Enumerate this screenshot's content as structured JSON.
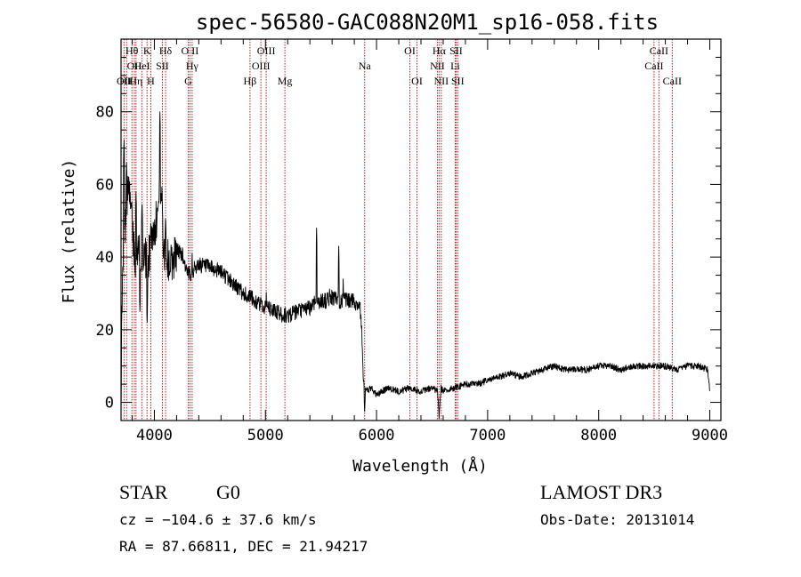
{
  "chart_data": {
    "type": "line",
    "title": "spec-56580-GAC088N20M1_sp16-058.fits",
    "xlabel": "Wavelength (Å)",
    "ylabel": "Flux (relative)",
    "xlim": [
      3700,
      9100
    ],
    "ylim": [
      -5,
      100
    ],
    "xticks": [
      4000,
      5000,
      6000,
      7000,
      8000,
      9000
    ],
    "yticks": [
      0,
      20,
      40,
      60,
      80
    ],
    "xtick_labels": [
      "4000",
      "5000",
      "6000",
      "7000",
      "8000",
      "9000"
    ],
    "ytick_labels": [
      "0",
      "20",
      "40",
      "60",
      "80"
    ],
    "spectrum_anchor_points": {
      "x": [
        3700,
        3710,
        3730,
        3750,
        3780,
        3800,
        3830,
        3850,
        3880,
        3900,
        3930,
        3950,
        3970,
        4000,
        4030,
        4050,
        4080,
        4100,
        4150,
        4200,
        4250,
        4300,
        4340,
        4370,
        4400,
        4500,
        4600,
        4700,
        4800,
        4861,
        4900,
        5000,
        5100,
        5150,
        5200,
        5300,
        5400,
        5450,
        5480,
        5500,
        5550,
        5600,
        5650,
        5700,
        5750,
        5800,
        5820,
        5850,
        5870,
        5880,
        5890,
        5895,
        5900,
        5920,
        5950,
        6000,
        6100,
        6200,
        6300,
        6400,
        6500,
        6550,
        6563,
        6580,
        6600,
        6700,
        6800,
        6900,
        7000,
        7100,
        7200,
        7300,
        7400,
        7500,
        7600,
        7700,
        7800,
        7900,
        8000,
        8100,
        8200,
        8300,
        8400,
        8500,
        8600,
        8700,
        8800,
        8900,
        8980,
        9000
      ],
      "y": [
        2,
        30,
        45,
        58,
        55,
        48,
        40,
        44,
        35,
        42,
        38,
        40,
        45,
        48,
        52,
        58,
        44,
        40,
        38,
        42,
        41,
        35,
        36,
        37,
        38,
        37,
        36,
        33,
        30,
        29,
        28,
        26,
        25,
        24,
        24,
        25,
        26,
        28,
        27,
        28,
        28,
        29,
        28,
        28,
        28,
        28,
        27,
        27,
        18,
        8,
        2,
        0,
        4,
        3,
        4,
        2,
        4,
        3,
        4,
        3,
        4,
        3,
        -4,
        4,
        3,
        4,
        5,
        5,
        6,
        7,
        8,
        7,
        8,
        9,
        10,
        9,
        9,
        9,
        10,
        10,
        9,
        10,
        10,
        10,
        10,
        9,
        10,
        10,
        9,
        3
      ]
    },
    "emission_spikes": [
      {
        "x": 3727,
        "y": 73
      },
      {
        "x": 3750,
        "y": 66
      },
      {
        "x": 3770,
        "y": 62
      },
      {
        "x": 3797,
        "y": 56
      },
      {
        "x": 3835,
        "y": 58
      },
      {
        "x": 3869,
        "y": 52
      },
      {
        "x": 3889,
        "y": 56
      },
      {
        "x": 3968,
        "y": 50
      },
      {
        "x": 4026,
        "y": 55
      },
      {
        "x": 4050,
        "y": 80
      },
      {
        "x": 4068,
        "y": 60
      },
      {
        "x": 4101,
        "y": 52
      },
      {
        "x": 4340,
        "y": 41
      },
      {
        "x": 4363,
        "y": 39
      },
      {
        "x": 4959,
        "y": 30
      },
      {
        "x": 5007,
        "y": 31
      },
      {
        "x": 5460,
        "y": 48
      },
      {
        "x": 5577,
        "y": 32
      },
      {
        "x": 5660,
        "y": 43
      },
      {
        "x": 5700,
        "y": 34
      }
    ],
    "absorption_dips": [
      {
        "x": 3870,
        "y": 25
      },
      {
        "x": 3935,
        "y": 22
      },
      {
        "x": 5875,
        "y": 12
      },
      {
        "x": 5893,
        "y": -3
      },
      {
        "x": 6563,
        "y": -5
      }
    ],
    "line_markers": [
      {
        "x": 3727,
        "row": 2,
        "label": "OII"
      },
      {
        "x": 3750,
        "row": 2,
        "label": "HE"
      },
      {
        "x": 3798,
        "row": 0,
        "label": "Hθ"
      },
      {
        "x": 3820,
        "row": 1,
        "label": "OII"
      },
      {
        "x": 3835,
        "row": 2,
        "label": "Hη"
      },
      {
        "x": 3889,
        "row": 1,
        "label": "HeI"
      },
      {
        "x": 3934,
        "row": 0,
        "label": "K"
      },
      {
        "x": 3968,
        "row": 2,
        "label": "H"
      },
      {
        "x": 4072,
        "row": 1,
        "label": "SII"
      },
      {
        "x": 4101,
        "row": 0,
        "label": "Hδ"
      },
      {
        "x": 4305,
        "row": 2,
        "label": "G"
      },
      {
        "x": 4320,
        "row": 0,
        "label": "O II"
      },
      {
        "x": 4340,
        "row": 1,
        "label": "Hγ"
      },
      {
        "x": 4861,
        "row": 2,
        "label": "Hβ"
      },
      {
        "x": 4959,
        "row": 1,
        "label": "OIII"
      },
      {
        "x": 5007,
        "row": 0,
        "label": "OIII"
      },
      {
        "x": 5175,
        "row": 2,
        "label": "Mg"
      },
      {
        "x": 5893,
        "row": 1,
        "label": "Na"
      },
      {
        "x": 6300,
        "row": 0,
        "label": "OI"
      },
      {
        "x": 6364,
        "row": 2,
        "label": "OI"
      },
      {
        "x": 6548,
        "row": 1,
        "label": "NII"
      },
      {
        "x": 6563,
        "row": 0,
        "label": "Hα"
      },
      {
        "x": 6583,
        "row": 2,
        "label": "NII"
      },
      {
        "x": 6708,
        "row": 1,
        "label": "Li"
      },
      {
        "x": 6716,
        "row": 0,
        "label": "SII"
      },
      {
        "x": 6731,
        "row": 2,
        "label": "SII"
      },
      {
        "x": 8498,
        "row": 1,
        "label": "CaII"
      },
      {
        "x": 8542,
        "row": 0,
        "label": "CaII"
      },
      {
        "x": 8662,
        "row": 2,
        "label": "CaII"
      }
    ]
  },
  "info": {
    "class_label": "STAR",
    "subclass": "G0",
    "cz": "cz = −104.6 ± 37.6 km/s",
    "radec": "RA =  87.66811, DEC =  21.94217",
    "survey": "LAMOST DR3",
    "obs_date": "Obs-Date: 20131014"
  },
  "colors": {
    "axis": "#000000",
    "spectrum": "#000000",
    "marker_line": "#b22222",
    "background": "#ffffff"
  }
}
